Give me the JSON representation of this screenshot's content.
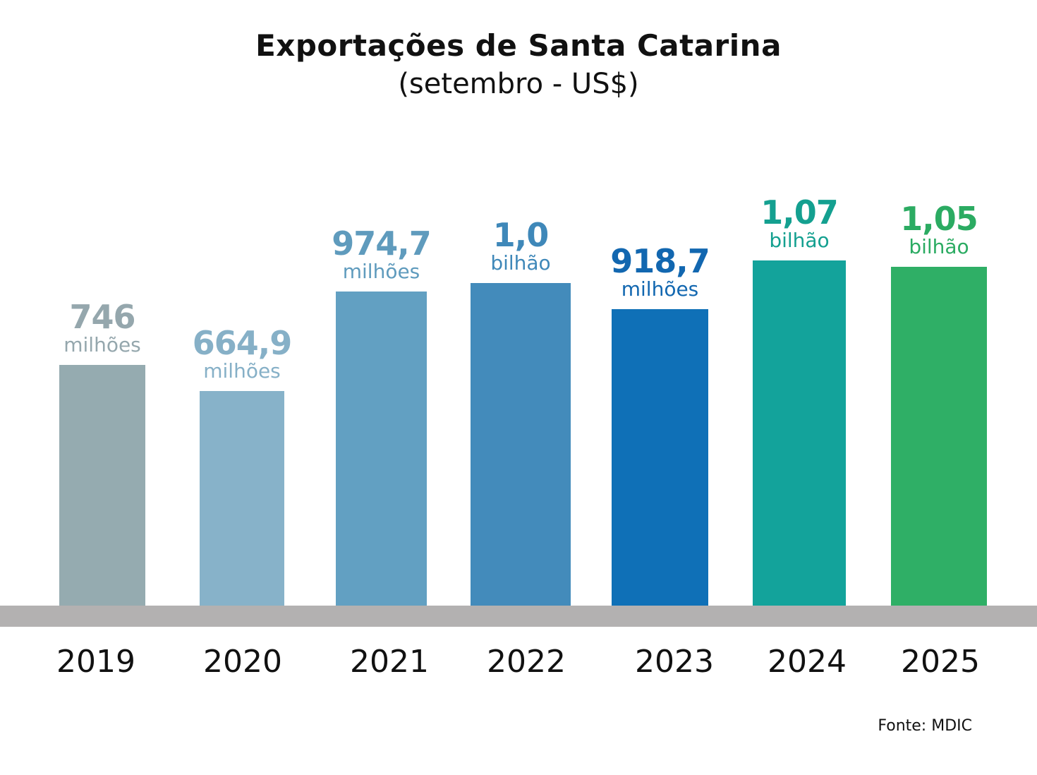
{
  "chart_data": {
    "type": "bar",
    "title": "Exportações de Santa Catarina",
    "subtitle": "(setembro - US$)",
    "categories": [
      "2019",
      "2020",
      "2021",
      "2022",
      "2023",
      "2024",
      "2025"
    ],
    "values_millions_usd": [
      746,
      664.9,
      974.7,
      1000,
      918.7,
      1070,
      1050
    ],
    "data_labels": [
      {
        "number": "746",
        "unit": "milhões"
      },
      {
        "number": "664,9",
        "unit": "milhões"
      },
      {
        "number": "974,7",
        "unit": "milhões"
      },
      {
        "number": "1,0",
        "unit": "bilhão"
      },
      {
        "number": "918,7",
        "unit": "milhões"
      },
      {
        "number": "1,07",
        "unit": "bilhão"
      },
      {
        "number": "1,05",
        "unit": "bilhão"
      }
    ],
    "bar_colors": [
      "#95abb0",
      "#87b2c9",
      "#62a0c2",
      "#438bbb",
      "#0f70b7",
      "#13a39b",
      "#2faf66"
    ],
    "label_colors": [
      "#95a7ad",
      "#86b0c7",
      "#5f9bbd",
      "#3f88b9",
      "#1267b0",
      "#14a090",
      "#2bab62"
    ],
    "axis_color": "#b3b1b1",
    "grid": false,
    "legend": "none",
    "source": "Fonte: MDIC"
  }
}
